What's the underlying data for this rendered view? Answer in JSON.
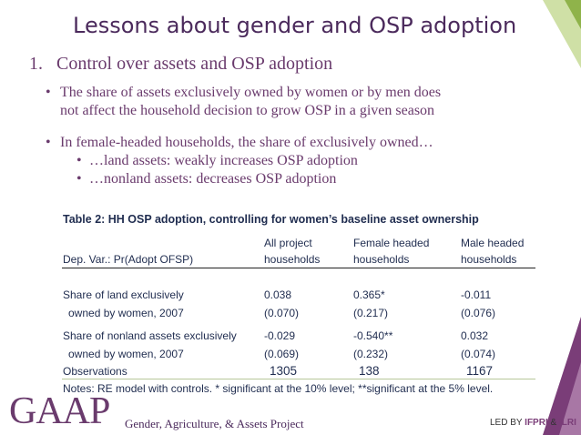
{
  "slide": {
    "title": "Lessons about gender and OSP adoption",
    "heading_num": "1.",
    "heading": "Control over assets and OSP adoption",
    "bullet1_line1": "The share of assets exclusively owned by women or by men does",
    "bullet1_line2": "not affect the household decision to grow OSP in a given season",
    "bullet2": "In female-headed households, the share of exclusively owned…",
    "sub1": "…land assets:  weakly increases OSP adoption",
    "sub2": "…nonland assets:  decreases OSP adoption",
    "bullet_glyph": "•"
  },
  "table": {
    "title": "Table 2: HH OSP adoption, controlling for women’s baseline asset ownership",
    "dep_var": "Dep. Var.:  Pr(Adopt OFSP)",
    "col1_line1": "All project",
    "col1_line2": "households",
    "col2_line1": "Female headed",
    "col2_line2": "households",
    "col3_line1": "Male headed",
    "col3_line2": "households",
    "rows": [
      {
        "label1": "Share of land exclusively",
        "label2": "owned by women, 2007",
        "c1a": "0.038",
        "c1b": "(0.070)",
        "c2a": "0.365*",
        "c2b": "(0.217)",
        "c3a": "-0.011",
        "c3b": "(0.076)"
      },
      {
        "label1": "Share of nonland assets exclusively",
        "label2": "owned by women, 2007",
        "c1a": "-0.029",
        "c1b": "(0.069)",
        "c2a": "-0.540**",
        "c2b": "(0.232)",
        "c3a": "0.032",
        "c3b": "(0.074)"
      }
    ],
    "obs_label": "Observations",
    "obs": [
      "1305",
      "138",
      "1167"
    ],
    "notes": "Notes: RE model with controls.  * significant at the 10% level; **significant at the 5% level."
  },
  "footer": {
    "logo": "GAAP",
    "logo_sub": "Gender, Agriculture, & Assets Project",
    "led_by": "LED BY",
    "org1": "IFPRI",
    "sep": " & ",
    "org2": "ILRI"
  },
  "colors": {
    "title": "#4b2a5c",
    "body": "#6a3b6d",
    "table_text": "#1f2c4f",
    "accent_green": "#8fb34a",
    "accent_purple": "#7a3d78"
  }
}
